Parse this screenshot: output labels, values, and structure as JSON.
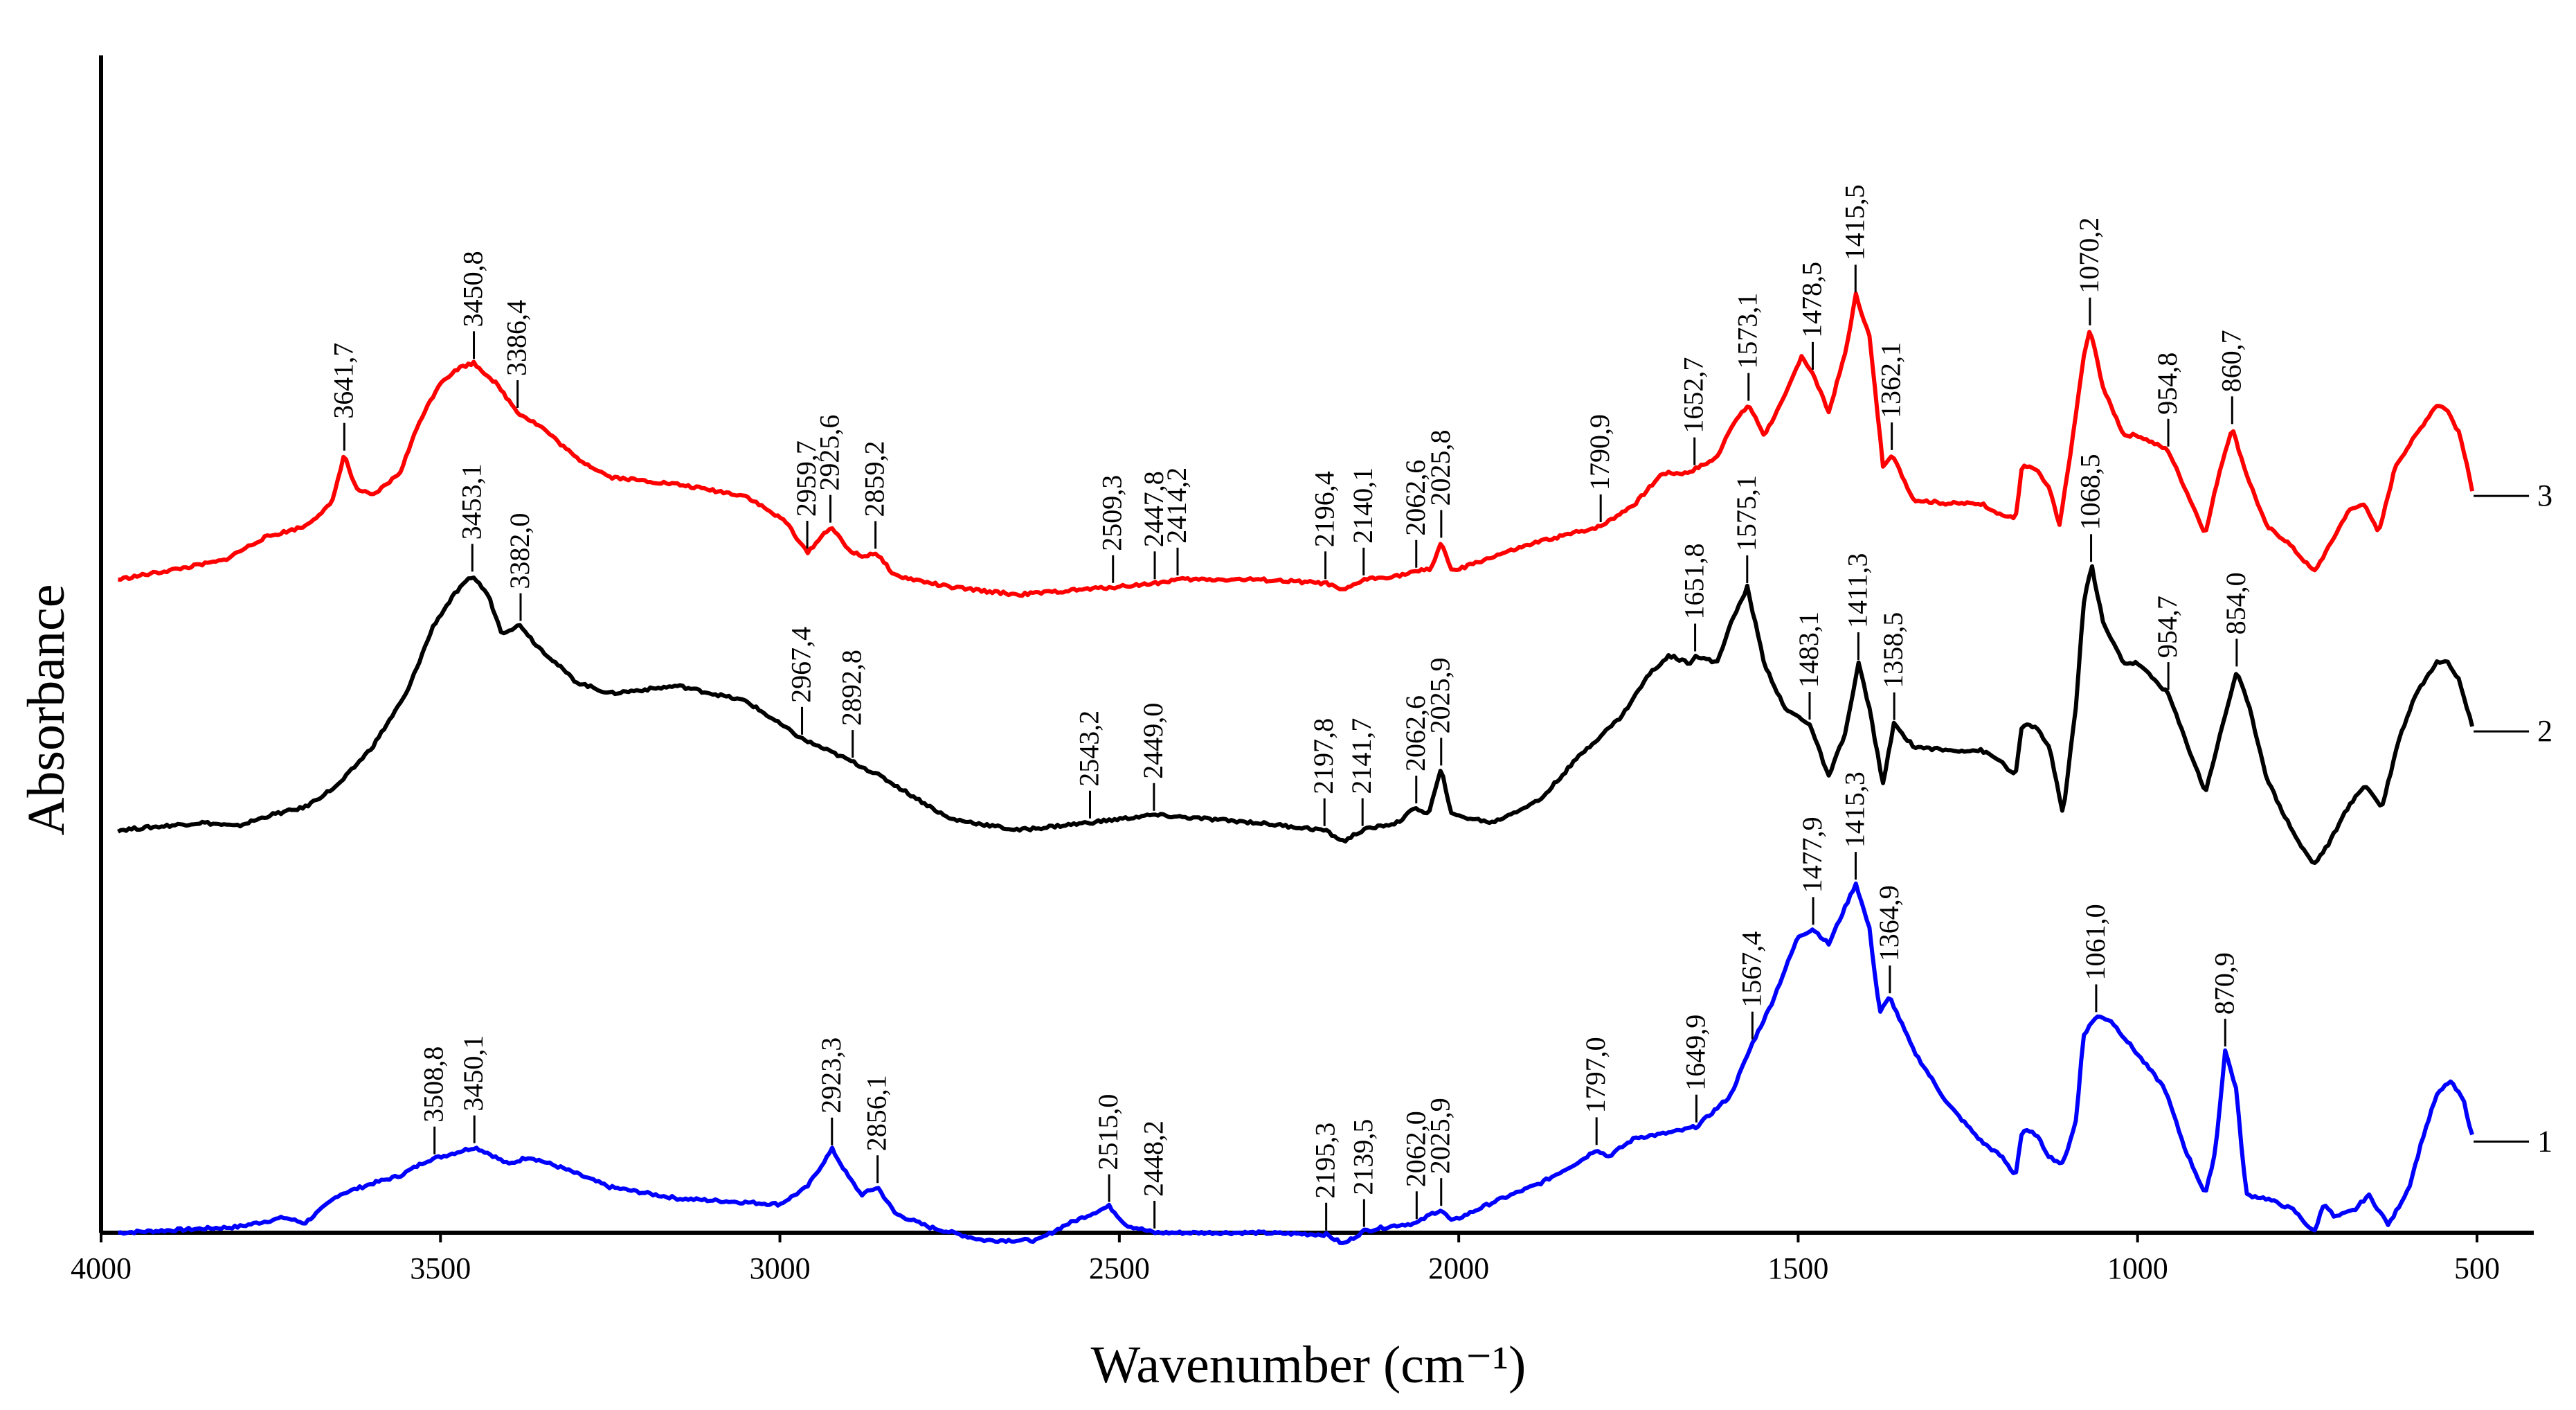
{
  "chart_data": {
    "type": "line",
    "title": "",
    "xlabel": "Wavenumber (cm⁻¹)",
    "ylabel": "Absorbance",
    "xlim": [
      4000,
      500
    ],
    "x_reversed": true,
    "ylim": [
      0,
      3.1
    ],
    "xticks": [
      "4000",
      "3500",
      "3000",
      "2500",
      "2000",
      "1500",
      "1000",
      "500"
    ],
    "grid": false,
    "series": [
      {
        "name": "1",
        "color": "#0000ff",
        "points": [
          [
            3975,
            0.0
          ],
          [
            3800,
            0.015
          ],
          [
            3730,
            0.04
          ],
          [
            3700,
            0.025
          ],
          [
            3650,
            0.1
          ],
          [
            3600,
            0.13
          ],
          [
            3560,
            0.15
          ],
          [
            3520,
            0.19
          ],
          [
            3480,
            0.21
          ],
          [
            3450,
            0.225
          ],
          [
            3430,
            0.21
          ],
          [
            3400,
            0.18
          ],
          [
            3370,
            0.2
          ],
          [
            3320,
            0.17
          ],
          [
            3250,
            0.12
          ],
          [
            3150,
            0.09
          ],
          [
            3000,
            0.075
          ],
          [
            2960,
            0.12
          ],
          [
            2923,
            0.22
          ],
          [
            2900,
            0.15
          ],
          [
            2880,
            0.1
          ],
          [
            2856,
            0.12
          ],
          [
            2830,
            0.05
          ],
          [
            2780,
            0.015
          ],
          [
            2700,
            -0.02
          ],
          [
            2620,
            -0.02
          ],
          [
            2580,
            0.02
          ],
          [
            2515,
            0.07
          ],
          [
            2490,
            0.02
          ],
          [
            2448,
            0.0
          ],
          [
            2300,
            0.0
          ],
          [
            2195,
            -0.005
          ],
          [
            2170,
            -0.03
          ],
          [
            2139,
            0.005
          ],
          [
            2090,
            0.02
          ],
          [
            2062,
            0.025
          ],
          [
            2040,
            0.05
          ],
          [
            2026,
            0.06
          ],
          [
            2010,
            0.03
          ],
          [
            1950,
            0.08
          ],
          [
            1880,
            0.13
          ],
          [
            1820,
            0.19
          ],
          [
            1797,
            0.22
          ],
          [
            1780,
            0.2
          ],
          [
            1740,
            0.25
          ],
          [
            1700,
            0.26
          ],
          [
            1670,
            0.27
          ],
          [
            1649,
            0.28
          ],
          [
            1600,
            0.36
          ],
          [
            1567,
            0.5
          ],
          [
            1540,
            0.6
          ],
          [
            1500,
            0.78
          ],
          [
            1478,
            0.8
          ],
          [
            1455,
            0.76
          ],
          [
            1415,
            0.92
          ],
          [
            1395,
            0.8
          ],
          [
            1380,
            0.58
          ],
          [
            1365,
            0.62
          ],
          [
            1330,
            0.48
          ],
          [
            1280,
            0.34
          ],
          [
            1230,
            0.24
          ],
          [
            1200,
            0.2
          ],
          [
            1180,
            0.15
          ],
          [
            1170,
            0.27
          ],
          [
            1150,
            0.26
          ],
          [
            1130,
            0.2
          ],
          [
            1110,
            0.18
          ],
          [
            1090,
            0.3
          ],
          [
            1080,
            0.52
          ],
          [
            1061,
            0.57
          ],
          [
            1040,
            0.56
          ],
          [
            1000,
            0.47
          ],
          [
            960,
            0.38
          ],
          [
            930,
            0.22
          ],
          [
            900,
            0.1
          ],
          [
            885,
            0.22
          ],
          [
            871,
            0.48
          ],
          [
            855,
            0.38
          ],
          [
            840,
            0.1
          ],
          [
            810,
            0.09
          ],
          [
            770,
            0.06
          ],
          [
            740,
            0.0
          ],
          [
            725,
            0.08
          ],
          [
            710,
            0.04
          ],
          [
            680,
            0.06
          ],
          [
            660,
            0.1
          ],
          [
            630,
            0.02
          ],
          [
            600,
            0.12
          ],
          [
            580,
            0.25
          ],
          [
            560,
            0.36
          ],
          [
            540,
            0.4
          ],
          [
            520,
            0.35
          ],
          [
            505,
            0.24
          ]
        ],
        "labels": [
          "3508,8",
          "3450,1",
          "2923,3",
          "2856,1",
          "2515,0",
          "2448,2",
          "2195,3",
          "2139,5",
          "2062,0",
          "2025,9",
          "1797,0",
          "1649,9",
          "1567,4",
          "1477,9",
          "1415,3",
          "1364,9",
          "1061,0",
          "870,9"
        ],
        "label_x": [
          3508.8,
          3450.1,
          2923.3,
          2856.1,
          2515.0,
          2448.2,
          2195.3,
          2139.5,
          2062.0,
          2025.9,
          1797.0,
          1649.9,
          1567.4,
          1477.9,
          1415.3,
          1364.9,
          1061.0,
          870.9
        ]
      },
      {
        "name": "2",
        "color": "#000000",
        "points": [
          [
            3975,
            1.06
          ],
          [
            3850,
            1.08
          ],
          [
            3800,
            1.07
          ],
          [
            3750,
            1.1
          ],
          [
            3700,
            1.12
          ],
          [
            3650,
            1.18
          ],
          [
            3600,
            1.28
          ],
          [
            3550,
            1.42
          ],
          [
            3510,
            1.6
          ],
          [
            3480,
            1.68
          ],
          [
            3453,
            1.73
          ],
          [
            3430,
            1.68
          ],
          [
            3410,
            1.58
          ],
          [
            3382,
            1.6
          ],
          [
            3360,
            1.55
          ],
          [
            3300,
            1.45
          ],
          [
            3250,
            1.42
          ],
          [
            3150,
            1.44
          ],
          [
            3050,
            1.4
          ],
          [
            2967,
            1.3
          ],
          [
            2930,
            1.27
          ],
          [
            2893,
            1.24
          ],
          [
            2850,
            1.2
          ],
          [
            2750,
            1.09
          ],
          [
            2650,
            1.06
          ],
          [
            2543,
            1.08
          ],
          [
            2449,
            1.1
          ],
          [
            2300,
            1.08
          ],
          [
            2198,
            1.06
          ],
          [
            2170,
            1.03
          ],
          [
            2142,
            1.06
          ],
          [
            2090,
            1.08
          ],
          [
            2063,
            1.12
          ],
          [
            2045,
            1.1
          ],
          [
            2026,
            1.22
          ],
          [
            2010,
            1.1
          ],
          [
            1950,
            1.08
          ],
          [
            1880,
            1.14
          ],
          [
            1820,
            1.26
          ],
          [
            1760,
            1.36
          ],
          [
            1720,
            1.47
          ],
          [
            1690,
            1.52
          ],
          [
            1660,
            1.5
          ],
          [
            1652,
            1.52
          ],
          [
            1620,
            1.5
          ],
          [
            1600,
            1.6
          ],
          [
            1575,
            1.7
          ],
          [
            1550,
            1.5
          ],
          [
            1520,
            1.38
          ],
          [
            1483,
            1.34
          ],
          [
            1455,
            1.2
          ],
          [
            1430,
            1.32
          ],
          [
            1411,
            1.5
          ],
          [
            1395,
            1.38
          ],
          [
            1375,
            1.18
          ],
          [
            1359,
            1.34
          ],
          [
            1330,
            1.28
          ],
          [
            1280,
            1.27
          ],
          [
            1230,
            1.27
          ],
          [
            1200,
            1.24
          ],
          [
            1180,
            1.2
          ],
          [
            1170,
            1.34
          ],
          [
            1150,
            1.33
          ],
          [
            1130,
            1.28
          ],
          [
            1110,
            1.1
          ],
          [
            1090,
            1.4
          ],
          [
            1080,
            1.65
          ],
          [
            1068,
            1.76
          ],
          [
            1050,
            1.6
          ],
          [
            1020,
            1.5
          ],
          [
            1000,
            1.5
          ],
          [
            955,
            1.42
          ],
          [
            930,
            1.3
          ],
          [
            900,
            1.16
          ],
          [
            880,
            1.3
          ],
          [
            854,
            1.48
          ],
          [
            835,
            1.38
          ],
          [
            810,
            1.2
          ],
          [
            790,
            1.12
          ],
          [
            760,
            1.02
          ],
          [
            740,
            0.97
          ],
          [
            720,
            1.02
          ],
          [
            690,
            1.12
          ],
          [
            665,
            1.18
          ],
          [
            640,
            1.12
          ],
          [
            615,
            1.3
          ],
          [
            590,
            1.42
          ],
          [
            560,
            1.5
          ],
          [
            545,
            1.51
          ],
          [
            525,
            1.45
          ],
          [
            505,
            1.32
          ]
        ],
        "labels": [
          "3453,1",
          "3382,0",
          "2967,4",
          "2892,8",
          "2543,2",
          "2449,0",
          "2197,8",
          "2141,7",
          "2062,6",
          "2025,9",
          "1651,8",
          "1575,1",
          "1483,1",
          "1411,3",
          "1358,5",
          "1068,5",
          "954,7",
          "854,0"
        ],
        "label_x": [
          3453.1,
          3382.0,
          2967.4,
          2892.8,
          2543.2,
          2449.0,
          2197.8,
          2141.7,
          2062.6,
          2025.9,
          1651.8,
          1575.1,
          1483.1,
          1411.3,
          1358.5,
          1068.5,
          954.7,
          854.0
        ]
      },
      {
        "name": "3",
        "color": "#ff0000",
        "points": [
          [
            3975,
            1.72
          ],
          [
            3880,
            1.75
          ],
          [
            3820,
            1.77
          ],
          [
            3760,
            1.83
          ],
          [
            3700,
            1.86
          ],
          [
            3660,
            1.92
          ],
          [
            3642,
            2.05
          ],
          [
            3625,
            1.96
          ],
          [
            3600,
            1.94
          ],
          [
            3560,
            2.0
          ],
          [
            3530,
            2.14
          ],
          [
            3500,
            2.24
          ],
          [
            3470,
            2.28
          ],
          [
            3451,
            2.29
          ],
          [
            3420,
            2.24
          ],
          [
            3386,
            2.16
          ],
          [
            3350,
            2.12
          ],
          [
            3300,
            2.04
          ],
          [
            3250,
            1.99
          ],
          [
            3150,
            1.97
          ],
          [
            3050,
            1.94
          ],
          [
            2990,
            1.87
          ],
          [
            2960,
            1.79
          ],
          [
            2940,
            1.83
          ],
          [
            2925,
            1.86
          ],
          [
            2900,
            1.8
          ],
          [
            2880,
            1.78
          ],
          [
            2859,
            1.79
          ],
          [
            2830,
            1.73
          ],
          [
            2750,
            1.7
          ],
          [
            2650,
            1.68
          ],
          [
            2509,
            1.7
          ],
          [
            2448,
            1.71
          ],
          [
            2414,
            1.72
          ],
          [
            2300,
            1.72
          ],
          [
            2196,
            1.71
          ],
          [
            2170,
            1.69
          ],
          [
            2140,
            1.72
          ],
          [
            2090,
            1.73
          ],
          [
            2063,
            1.74
          ],
          [
            2040,
            1.75
          ],
          [
            2026,
            1.82
          ],
          [
            2010,
            1.74
          ],
          [
            1950,
            1.78
          ],
          [
            1880,
            1.82
          ],
          [
            1791,
            1.86
          ],
          [
            1740,
            1.92
          ],
          [
            1700,
            2.0
          ],
          [
            1665,
            2.0
          ],
          [
            1653,
            2.01
          ],
          [
            1620,
            2.04
          ],
          [
            1600,
            2.12
          ],
          [
            1573,
            2.18
          ],
          [
            1550,
            2.1
          ],
          [
            1520,
            2.2
          ],
          [
            1495,
            2.31
          ],
          [
            1478,
            2.26
          ],
          [
            1455,
            2.16
          ],
          [
            1430,
            2.32
          ],
          [
            1415,
            2.47
          ],
          [
            1395,
            2.36
          ],
          [
            1375,
            2.02
          ],
          [
            1362,
            2.05
          ],
          [
            1330,
            1.93
          ],
          [
            1280,
            1.92
          ],
          [
            1230,
            1.92
          ],
          [
            1200,
            1.89
          ],
          [
            1180,
            1.88
          ],
          [
            1170,
            2.02
          ],
          [
            1150,
            2.01
          ],
          [
            1130,
            1.96
          ],
          [
            1115,
            1.86
          ],
          [
            1095,
            2.1
          ],
          [
            1080,
            2.3
          ],
          [
            1070,
            2.38
          ],
          [
            1050,
            2.22
          ],
          [
            1020,
            2.1
          ],
          [
            1000,
            2.1
          ],
          [
            955,
            2.06
          ],
          [
            930,
            1.96
          ],
          [
            900,
            1.84
          ],
          [
            880,
            2.0
          ],
          [
            861,
            2.12
          ],
          [
            840,
            2.0
          ],
          [
            810,
            1.86
          ],
          [
            780,
            1.82
          ],
          [
            740,
            1.74
          ],
          [
            720,
            1.8
          ],
          [
            690,
            1.9
          ],
          [
            665,
            1.92
          ],
          [
            645,
            1.84
          ],
          [
            620,
            2.02
          ],
          [
            590,
            2.1
          ],
          [
            560,
            2.18
          ],
          [
            545,
            2.17
          ],
          [
            525,
            2.1
          ],
          [
            505,
            1.94
          ]
        ],
        "labels": [
          "3641,7",
          "3450,8",
          "3386,4",
          "2959,7",
          "2925,6",
          "2859,2",
          "2509,3",
          "2447,8",
          "2414,2",
          "2196,4",
          "2140,1",
          "2062,6",
          "2025,8",
          "1790,9",
          "1652,7",
          "1573,1",
          "1478,5",
          "1415,5",
          "1362,1",
          "1070,2",
          "954,8",
          "860,7"
        ],
        "label_x": [
          3641.7,
          3450.8,
          3386.4,
          2959.7,
          2925.6,
          2859.2,
          2509.3,
          2447.8,
          2414.2,
          2196.4,
          2140.1,
          2062.6,
          2025.8,
          1790.9,
          1652.7,
          1573.1,
          1478.5,
          1415.5,
          1362.1,
          1070.2,
          954.8,
          860.7
        ]
      }
    ]
  }
}
